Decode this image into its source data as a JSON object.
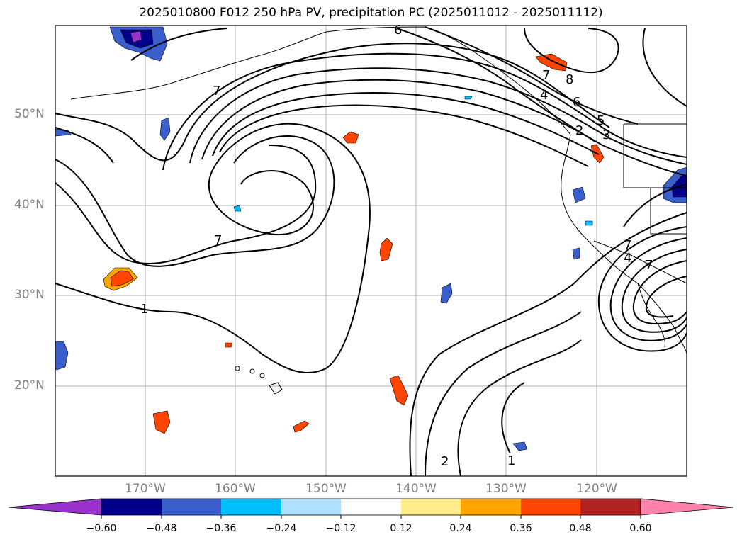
{
  "title": "2025010800 F012 250 hPa PV, precipitation PC (2025011012 - 2025011112)",
  "map": {
    "lat_labels": [
      "50°N",
      "40°N",
      "30°N",
      "20°N"
    ],
    "lon_labels": [
      "170°W",
      "160°W",
      "150°W",
      "140°W",
      "130°W",
      "120°W"
    ],
    "grid_color": "#b0b0b0",
    "label_color": "#7f7f7f",
    "contour_color": "#000000",
    "contour_labels": [
      "7",
      "7",
      "7",
      "1",
      "2",
      "1",
      "6",
      "7",
      "8",
      "6",
      "5",
      "4",
      "3",
      "2",
      "7",
      "4"
    ]
  },
  "colorbar": {
    "tick_labels": [
      "−0.60",
      "−0.48",
      "−0.36",
      "−0.24",
      "−0.12",
      "0.12",
      "0.24",
      "0.36",
      "0.48",
      "0.60"
    ],
    "colors": [
      "#9932cc",
      "#00008b",
      "#3a5fcd",
      "#00bfff",
      "#b0e2ff",
      "#ffffff",
      "#ffec8b",
      "#ffa500",
      "#ff4500",
      "#b22222",
      "#ff82ab"
    ]
  }
}
